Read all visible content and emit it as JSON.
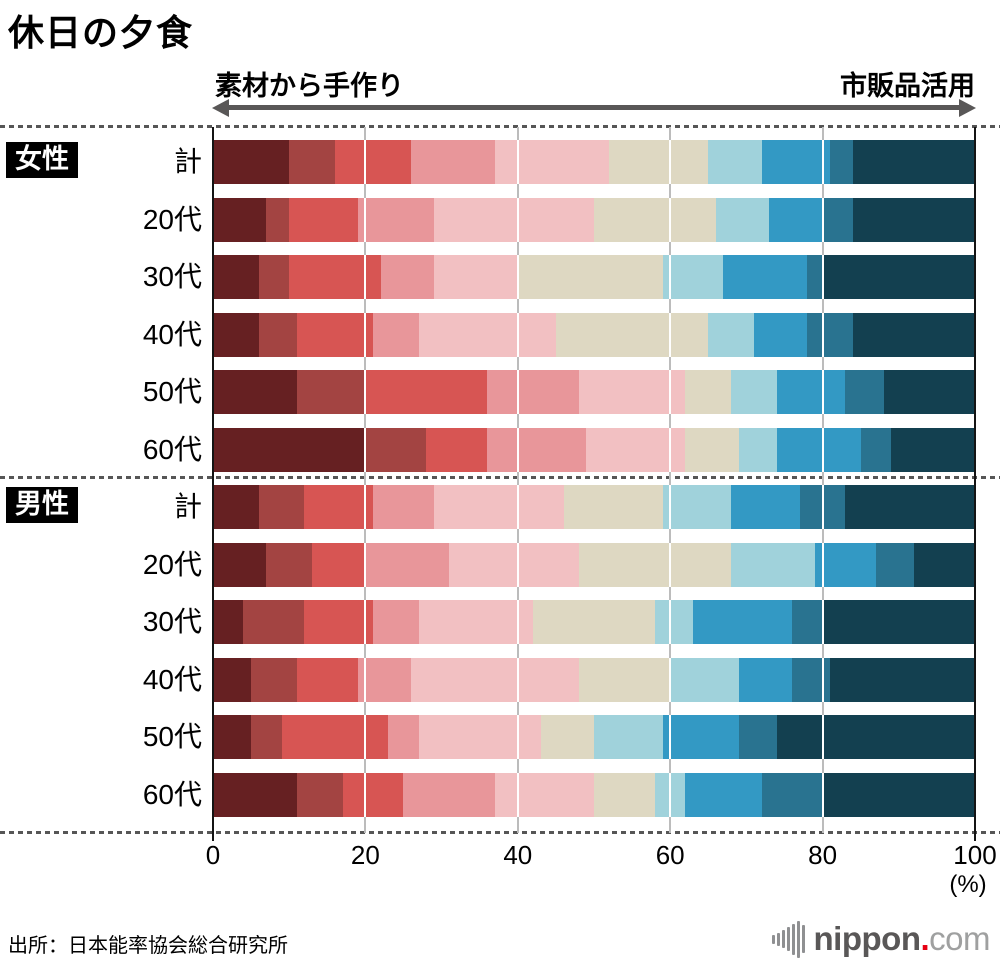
{
  "title": "休日の夕食",
  "scale": {
    "left_label": "素材から手作り",
    "right_label": "市販品活用"
  },
  "axis": {
    "ticks": [
      "0",
      "20",
      "40",
      "60",
      "80",
      "100"
    ],
    "unit": "(%)"
  },
  "source": "出所：日本能率協会総合研究所",
  "logo": {
    "name": "nippon",
    "dot": ".",
    "tld": "com",
    "dot_color": "#e60012"
  },
  "chart_data": {
    "type": "bar",
    "stacked": true,
    "orientation": "horizontal",
    "title": "休日の夕食",
    "xlabel": "(%)",
    "xlim": [
      0,
      100
    ],
    "x_ticks": [
      0,
      20,
      40,
      60,
      80,
      100
    ],
    "gridlines": [
      20,
      40,
      60,
      80
    ],
    "scale_ends": {
      "left": "素材から手作り",
      "right": "市販品活用"
    },
    "palette": [
      "#662022",
      "#A34442",
      "#D75553",
      "#E8969A",
      "#F2C0C2",
      "#DED8C2",
      "#A0D2DB",
      "#3399C4",
      "#297390",
      "#134050"
    ],
    "groups": [
      {
        "label": "女性",
        "rows": [
          {
            "label": "計",
            "values": [
              10,
              6,
              10,
              11,
              15,
              13,
              7,
              9,
              3,
              16
            ]
          },
          {
            "label": "20代",
            "values": [
              7,
              3,
              9,
              10,
              21,
              16,
              7,
              7,
              4,
              16
            ]
          },
          {
            "label": "30代",
            "values": [
              6,
              4,
              12,
              7,
              11,
              19,
              8,
              11,
              2,
              20
            ]
          },
          {
            "label": "40代",
            "values": [
              6,
              5,
              10,
              6,
              18,
              20,
              6,
              7,
              6,
              16
            ]
          },
          {
            "label": "50代",
            "values": [
              11,
              9,
              16,
              12,
              14,
              6,
              6,
              9,
              5,
              12
            ]
          },
          {
            "label": "60代",
            "values": [
              20,
              8,
              8,
              13,
              13,
              7,
              5,
              11,
              4,
              11
            ]
          }
        ]
      },
      {
        "label": "男性",
        "rows": [
          {
            "label": "計",
            "values": [
              6,
              6,
              9,
              8,
              17,
              13,
              9,
              9,
              6,
              17
            ]
          },
          {
            "label": "20代",
            "values": [
              7,
              6,
              7,
              11,
              17,
              20,
              11,
              8,
              5,
              8
            ]
          },
          {
            "label": "30代",
            "values": [
              4,
              8,
              9,
              6,
              15,
              16,
              5,
              13,
              4,
              20
            ]
          },
          {
            "label": "40代",
            "values": [
              5,
              6,
              8,
              7,
              22,
              12,
              9,
              7,
              5,
              19
            ]
          },
          {
            "label": "50代",
            "values": [
              5,
              4,
              14,
              4,
              16,
              7,
              9,
              10,
              5,
              26
            ]
          },
          {
            "label": "60代",
            "values": [
              11,
              6,
              8,
              12,
              13,
              8,
              4,
              10,
              8,
              20
            ]
          }
        ]
      }
    ]
  }
}
